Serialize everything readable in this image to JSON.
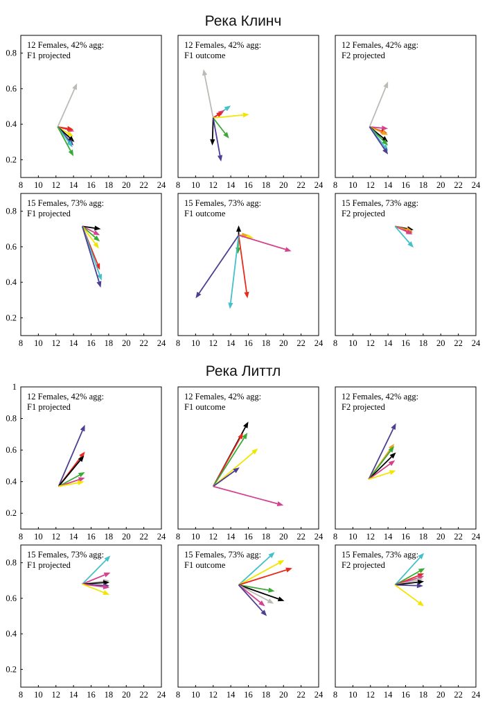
{
  "figure": {
    "sections": [
      {
        "title": "Река Клинч"
      },
      {
        "title": "Река Литтл"
      }
    ],
    "xticks": [
      8,
      10,
      12,
      14,
      16,
      18,
      20,
      22,
      24
    ],
    "xlim": [
      8,
      24
    ]
  },
  "colors": {
    "black": "#000000",
    "red": "#e8291c",
    "green": "#3aaa35",
    "yellow": "#f2e500",
    "purple": "#4b3f93",
    "cyan": "#43c0c8",
    "magenta": "#d4418e",
    "gray": "#bdbab5",
    "orange": "#f0a21e"
  },
  "chart_data": [
    {
      "type": "vector",
      "section": 0,
      "row": 0,
      "col": 0,
      "label1": "12 Females, 42% agg:",
      "label2": "F1 projected",
      "yticks": [
        "0.2",
        "0.4",
        "0.6",
        "0.8"
      ],
      "ylim": [
        0.1,
        0.9
      ],
      "origin": [
        12.2,
        0.385
      ],
      "arrows": [
        {
          "color": "gray",
          "end": [
            14.4,
            0.63
          ]
        },
        {
          "color": "magenta",
          "end": [
            14.1,
            0.36
          ]
        },
        {
          "color": "red",
          "end": [
            14.0,
            0.37
          ]
        },
        {
          "color": "yellow",
          "end": [
            14.0,
            0.33
          ]
        },
        {
          "color": "black",
          "end": [
            14.1,
            0.3
          ]
        },
        {
          "color": "purple",
          "end": [
            14.0,
            0.28
          ]
        },
        {
          "color": "cyan",
          "end": [
            13.9,
            0.27
          ]
        },
        {
          "color": "green",
          "end": [
            14.0,
            0.22
          ]
        }
      ]
    },
    {
      "type": "vector",
      "section": 0,
      "row": 0,
      "col": 1,
      "label1": "12 Females, 42% agg:",
      "label2": "F1 outcome",
      "yticks": [
        "0.2",
        "0.4",
        "0.6",
        "0.8"
      ],
      "ylim": [
        0.1,
        0.9
      ],
      "origin": [
        12.0,
        0.435
      ],
      "arrows": [
        {
          "color": "gray",
          "end": [
            10.9,
            0.71
          ]
        },
        {
          "color": "cyan",
          "end": [
            14.0,
            0.505
          ]
        },
        {
          "color": "magenta",
          "end": [
            13.3,
            0.48
          ]
        },
        {
          "color": "red",
          "end": [
            13.1,
            0.47
          ]
        },
        {
          "color": "yellow",
          "end": [
            16.1,
            0.455
          ]
        },
        {
          "color": "green",
          "end": [
            13.8,
            0.32
          ]
        },
        {
          "color": "black",
          "end": [
            11.9,
            0.28
          ]
        },
        {
          "color": "purple",
          "end": [
            12.9,
            0.19
          ]
        }
      ]
    },
    {
      "type": "vector",
      "section": 0,
      "row": 0,
      "col": 2,
      "label1": "12 Females, 42% agg:",
      "label2": "F2 projected",
      "yticks": [
        "0.2",
        "0.4",
        "0.6",
        "0.8"
      ],
      "ylim": [
        0.1,
        0.9
      ],
      "origin": [
        11.9,
        0.385
      ],
      "arrows": [
        {
          "color": "gray",
          "end": [
            14.0,
            0.64
          ]
        },
        {
          "color": "magenta",
          "end": [
            14.0,
            0.375
          ]
        },
        {
          "color": "red",
          "end": [
            13.9,
            0.35
          ]
        },
        {
          "color": "orange",
          "end": [
            14.0,
            0.34
          ]
        },
        {
          "color": "black",
          "end": [
            14.0,
            0.3
          ]
        },
        {
          "color": "green",
          "end": [
            14.0,
            0.28
          ]
        },
        {
          "color": "cyan",
          "end": [
            14.0,
            0.25
          ]
        },
        {
          "color": "purple",
          "end": [
            14.0,
            0.23
          ]
        }
      ]
    },
    {
      "type": "vector",
      "section": 0,
      "row": 1,
      "col": 0,
      "label1": "15 Females, 73% agg:",
      "label2": "F1 projected",
      "yticks": [
        "0.2",
        "0.4",
        "0.6",
        "0.8"
      ],
      "ylim": [
        0.1,
        0.9
      ],
      "origin": [
        15.0,
        0.715
      ],
      "arrows": [
        {
          "color": "black",
          "end": [
            17.1,
            0.7
          ]
        },
        {
          "color": "magenta",
          "end": [
            17.0,
            0.665
          ]
        },
        {
          "color": "green",
          "end": [
            17.0,
            0.63
          ]
        },
        {
          "color": "yellow",
          "end": [
            16.9,
            0.59
          ]
        },
        {
          "color": "red",
          "end": [
            17.0,
            0.47
          ]
        },
        {
          "color": "cyan",
          "end": [
            17.2,
            0.41
          ]
        },
        {
          "color": "purple",
          "end": [
            17.1,
            0.37
          ]
        }
      ]
    },
    {
      "type": "vector",
      "section": 0,
      "row": 1,
      "col": 1,
      "label1": "15 Females, 73% agg:",
      "label2": "F1 outcome",
      "yticks": [
        "0.2",
        "0.4",
        "0.6",
        "0.8"
      ],
      "ylim": [
        0.1,
        0.9
      ],
      "origin": [
        14.9,
        0.665
      ],
      "arrows": [
        {
          "color": "black",
          "end": [
            14.9,
            0.72
          ]
        },
        {
          "color": "yellow",
          "end": [
            16.6,
            0.65
          ]
        },
        {
          "color": "orange",
          "end": [
            16.0,
            0.665
          ]
        },
        {
          "color": "magenta",
          "end": [
            20.9,
            0.575
          ]
        },
        {
          "color": "green",
          "end": [
            14.8,
            0.56
          ]
        },
        {
          "color": "red",
          "end": [
            15.9,
            0.31
          ]
        },
        {
          "color": "cyan",
          "end": [
            13.9,
            0.25
          ]
        },
        {
          "color": "purple",
          "end": [
            10.0,
            0.31
          ]
        }
      ]
    },
    {
      "type": "vector",
      "section": 0,
      "row": 1,
      "col": 2,
      "label1": "15 Females, 73% agg:",
      "label2": "F2 projected",
      "yticks": [
        "0.2",
        "0.4",
        "0.6",
        "0.8"
      ],
      "ylim": [
        0.1,
        0.9
      ],
      "origin": [
        14.8,
        0.715
      ],
      "arrows": [
        {
          "color": "black",
          "end": [
            16.9,
            0.695
          ]
        },
        {
          "color": "red",
          "end": [
            16.8,
            0.68
          ]
        },
        {
          "color": "orange",
          "end": [
            16.8,
            0.688
          ]
        },
        {
          "color": "magenta",
          "end": [
            16.8,
            0.67
          ]
        },
        {
          "color": "cyan",
          "end": [
            16.9,
            0.595
          ]
        }
      ]
    },
    {
      "type": "vector",
      "section": 1,
      "row": 0,
      "col": 0,
      "label1": "12 Females, 42% agg:",
      "label2": "F1 projected",
      "yticks": [
        "0.2",
        "0.4",
        "0.6",
        "0.8",
        "1"
      ],
      "ylim": [
        0.1,
        1.0
      ],
      "origin": [
        12.3,
        0.37
      ],
      "arrows": [
        {
          "color": "purple",
          "end": [
            15.3,
            0.76
          ]
        },
        {
          "color": "red",
          "end": [
            15.3,
            0.59
          ]
        },
        {
          "color": "black",
          "end": [
            15.2,
            0.565
          ]
        },
        {
          "color": "green",
          "end": [
            15.3,
            0.46
          ]
        },
        {
          "color": "magenta",
          "end": [
            15.3,
            0.425
          ]
        },
        {
          "color": "yellow",
          "end": [
            15.2,
            0.4
          ]
        }
      ]
    },
    {
      "type": "vector",
      "section": 1,
      "row": 0,
      "col": 1,
      "label1": "12 Females, 42% agg:",
      "label2": "F1 outcome",
      "yticks": [
        "0.2",
        "0.4",
        "0.6",
        "0.8",
        "1"
      ],
      "ylim": [
        0.1,
        1.0
      ],
      "origin": [
        12.0,
        0.37
      ],
      "arrows": [
        {
          "color": "black",
          "end": [
            16.0,
            0.78
          ]
        },
        {
          "color": "red",
          "end": [
            15.4,
            0.71
          ]
        },
        {
          "color": "green",
          "end": [
            15.9,
            0.71
          ]
        },
        {
          "color": "yellow",
          "end": [
            17.1,
            0.61
          ]
        },
        {
          "color": "purple",
          "end": [
            15.0,
            0.49
          ]
        },
        {
          "color": "magenta",
          "end": [
            20.0,
            0.25
          ]
        }
      ]
    },
    {
      "type": "vector",
      "section": 1,
      "row": 0,
      "col": 2,
      "label1": "12 Females, 42% agg:",
      "label2": "F2 projected",
      "yticks": [
        "0.2",
        "0.4",
        "0.6",
        "0.8",
        "1"
      ],
      "ylim": [
        0.1,
        1.0
      ],
      "origin": [
        11.8,
        0.415
      ],
      "arrows": [
        {
          "color": "purple",
          "end": [
            14.9,
            0.77
          ]
        },
        {
          "color": "orange",
          "end": [
            14.7,
            0.64
          ]
        },
        {
          "color": "green",
          "end": [
            14.7,
            0.625
          ]
        },
        {
          "color": "black",
          "end": [
            14.9,
            0.585
          ]
        },
        {
          "color": "magenta",
          "end": [
            14.8,
            0.535
          ]
        },
        {
          "color": "yellow",
          "end": [
            14.9,
            0.47
          ]
        }
      ]
    },
    {
      "type": "vector",
      "section": 1,
      "row": 1,
      "col": 0,
      "label1": "15 Females, 73% agg:",
      "label2": "F1 projected",
      "yticks": [
        "0.2",
        "0.4",
        "0.6",
        "0.8"
      ],
      "ylim": [
        0.1,
        0.9
      ],
      "origin": [
        15.0,
        0.68
      ],
      "arrows": [
        {
          "color": "cyan",
          "end": [
            18.2,
            0.84
          ]
        },
        {
          "color": "magenta",
          "end": [
            18.2,
            0.745
          ]
        },
        {
          "color": "gray",
          "end": [
            18.1,
            0.7
          ]
        },
        {
          "color": "black",
          "end": [
            18.1,
            0.69
          ]
        },
        {
          "color": "purple",
          "end": [
            18.1,
            0.67
          ]
        },
        {
          "color": "magenta",
          "end": [
            18.1,
            0.66
          ]
        },
        {
          "color": "yellow",
          "end": [
            18.1,
            0.62
          ]
        }
      ]
    },
    {
      "type": "vector",
      "section": 1,
      "row": 1,
      "col": 1,
      "label1": "15 Females, 73% agg:",
      "label2": "F1 outcome",
      "yticks": [
        "0.2",
        "0.4",
        "0.6",
        "0.8"
      ],
      "ylim": [
        0.1,
        0.9
      ],
      "origin": [
        14.9,
        0.675
      ],
      "arrows": [
        {
          "color": "cyan",
          "end": [
            19.0,
            0.86
          ]
        },
        {
          "color": "yellow",
          "end": [
            20.1,
            0.815
          ]
        },
        {
          "color": "red",
          "end": [
            21.0,
            0.77
          ]
        },
        {
          "color": "green",
          "end": [
            19.0,
            0.64
          ]
        },
        {
          "color": "black",
          "end": [
            20.1,
            0.585
          ]
        },
        {
          "color": "gray",
          "end": [
            18.9,
            0.57
          ]
        },
        {
          "color": "magenta",
          "end": [
            17.9,
            0.555
          ]
        },
        {
          "color": "purple",
          "end": [
            18.1,
            0.5
          ]
        }
      ]
    },
    {
      "type": "vector",
      "section": 1,
      "row": 1,
      "col": 2,
      "label1": "15 Females, 73% agg:",
      "label2": "F2 projected",
      "yticks": [
        "0.2",
        "0.4",
        "0.6",
        "0.8"
      ],
      "ylim": [
        0.1,
        0.9
      ],
      "origin": [
        14.8,
        0.675
      ],
      "arrows": [
        {
          "color": "cyan",
          "end": [
            18.1,
            0.855
          ]
        },
        {
          "color": "green",
          "end": [
            18.2,
            0.77
          ]
        },
        {
          "color": "red",
          "end": [
            18.1,
            0.74
          ]
        },
        {
          "color": "magenta",
          "end": [
            18.1,
            0.725
          ]
        },
        {
          "color": "gray",
          "end": [
            18.0,
            0.71
          ]
        },
        {
          "color": "black",
          "end": [
            18.1,
            0.695
          ]
        },
        {
          "color": "purple",
          "end": [
            18.0,
            0.67
          ]
        },
        {
          "color": "yellow",
          "end": [
            18.1,
            0.555
          ]
        }
      ]
    }
  ]
}
